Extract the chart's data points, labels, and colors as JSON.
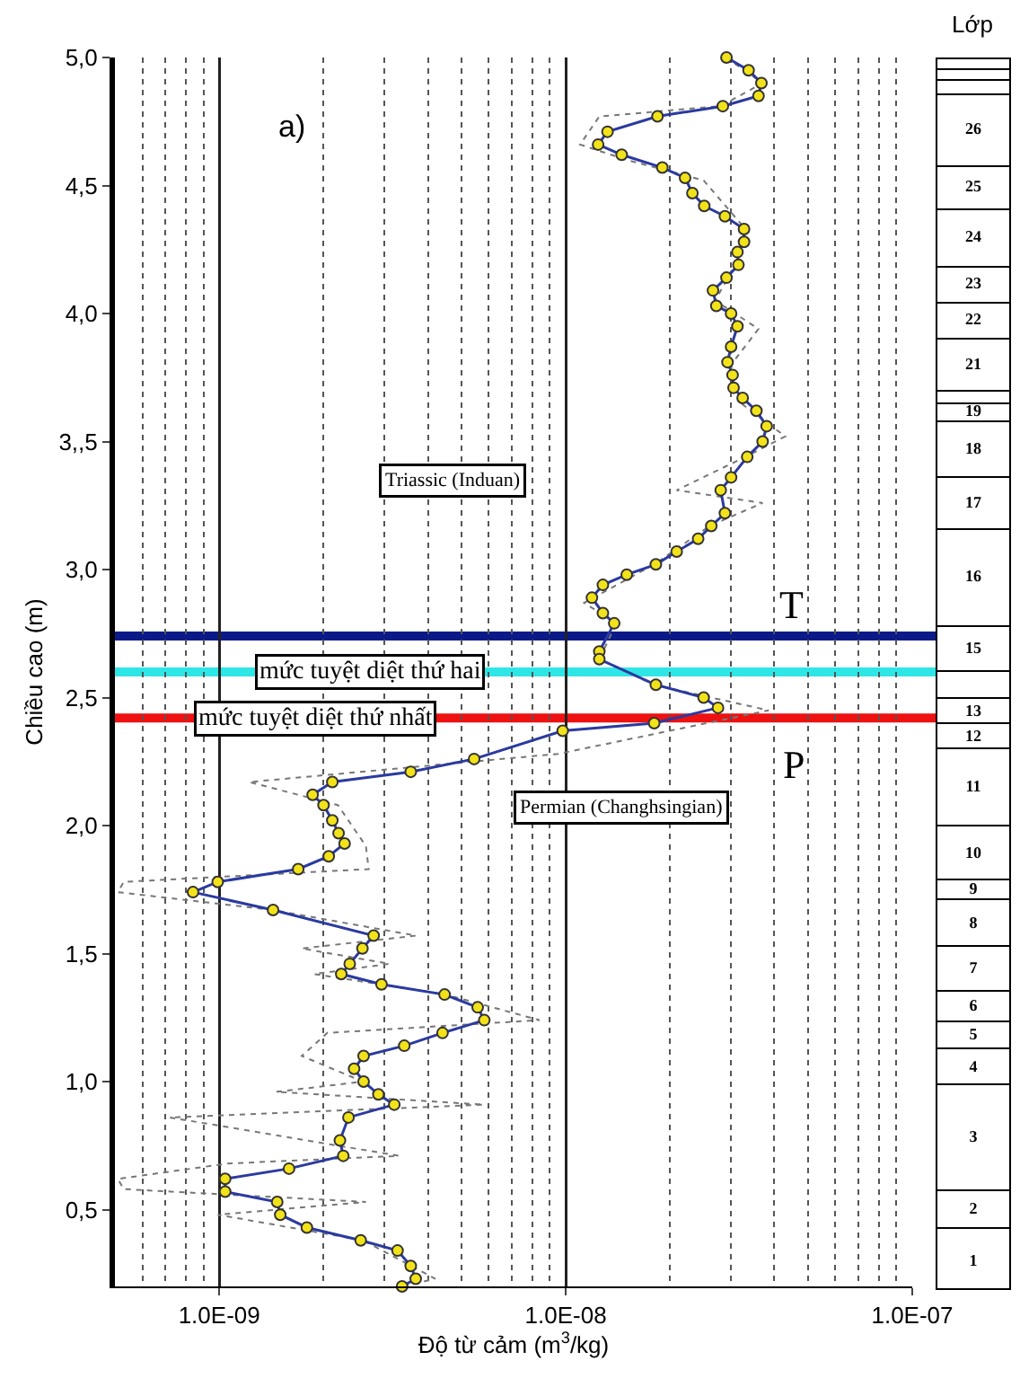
{
  "chart_data": [
    {
      "type": "line",
      "xlabel": "Độ từ cảm (m$^{3}$/kg)",
      "ylabel": "Chiều cao (m)",
      "log": "x",
      "grid": "x",
      "xlim": [
        5e-10,
        1e-07
      ],
      "xticks": [
        {
          "value": 1e-09,
          "label": "1.0E-09"
        },
        {
          "value": 1e-08,
          "label": "1.0E-08"
        },
        {
          "value": 1e-07,
          "label": "1.0E-07"
        }
      ],
      "ylim": [
        0.2,
        5.0
      ],
      "yticks": [
        {
          "value": 0.5,
          "label": "0,5"
        },
        {
          "value": 1.0,
          "label": "1,0"
        },
        {
          "value": 1.5,
          "label": "1,5"
        },
        {
          "value": 2.0,
          "label": "2,0"
        },
        {
          "value": 2.5,
          "label": "2,5"
        },
        {
          "value": 3.0,
          "label": "3,0"
        },
        {
          "value": 3.5,
          "label": "3,,5"
        },
        {
          "value": 4.0,
          "label": "4,0"
        },
        {
          "value": 4.5,
          "label": "4,5"
        },
        {
          "value": 5.0,
          "label": "5,0"
        }
      ],
      "series": [
        {
          "color": "#777777",
          "line_style": "dotted",
          "marker": "none",
          "x": [
            2.9e-08,
            3.7e-08,
            2.8e-08,
            1.25e-08,
            1.1e-08,
            1.5e-08,
            2.5e-08,
            3.3e-08,
            3.1e-08,
            2.7e-08,
            3.6e-08,
            3e-08,
            3.2e-08,
            4.3e-08,
            3.3e-08,
            2.09e-08,
            3.7e-08,
            2.6e-08,
            1.8e-08,
            1.13e-08,
            1.4e-08,
            1.25e-08,
            1.8e-08,
            3.85e-08,
            9.5e-09,
            5.4e-09,
            1.22e-09,
            2.2e-09,
            2.65e-09,
            2.7e-09,
            5.3e-10,
            5.1e-10,
            1.43e-09,
            3.7e-09,
            1.73e-09,
            3.1e-09,
            1.88e-09,
            4.5e-09,
            8.4e-09,
            2.05e-09,
            1.73e-09,
            2.6e-09,
            1.46e-09,
            5.8e-09,
            7.2e-10,
            3.3e-09,
            1.06e-09,
            5.1e-10,
            5.3e-10,
            2.65e-09,
            9.9e-10,
            2.6e-09,
            4.2e-09,
            3.4e-09
          ],
          "values": [
            5.0,
            4.9,
            4.81,
            4.77,
            4.66,
            4.6,
            4.52,
            4.33,
            4.2,
            4.05,
            3.94,
            3.8,
            3.65,
            3.52,
            3.44,
            3.31,
            3.26,
            3.17,
            3.02,
            2.87,
            2.79,
            2.65,
            2.55,
            2.45,
            2.28,
            2.25,
            2.17,
            2.08,
            1.92,
            1.83,
            1.78,
            1.74,
            1.67,
            1.57,
            1.52,
            1.46,
            1.42,
            1.34,
            1.24,
            1.19,
            1.1,
            1.0,
            0.96,
            0.91,
            0.86,
            0.71,
            0.68,
            0.62,
            0.58,
            0.53,
            0.48,
            0.38,
            0.23,
            0.2
          ]
        },
        {
          "color": "#2a3aa0",
          "marker": "circle",
          "x": [
            2.91e-08,
            3.37e-08,
            3.67e-08,
            3.6e-08,
            2.84e-08,
            1.84e-08,
            1.32e-08,
            1.24e-08,
            1.45e-08,
            1.9e-08,
            2.21e-08,
            2.32e-08,
            2.51e-08,
            2.88e-08,
            3.27e-08,
            3.27e-08,
            3.13e-08,
            3.15e-08,
            2.91e-08,
            2.66e-08,
            2.72e-08,
            3e-08,
            3.13e-08,
            3e-08,
            2.93e-08,
            3.03e-08,
            3.05e-08,
            3.24e-08,
            3.55e-08,
            3.8e-08,
            3.7e-08,
            3.34e-08,
            3e-08,
            2.8e-08,
            2.88e-08,
            2.63e-08,
            2.41e-08,
            2.09e-08,
            1.82e-08,
            1.5e-08,
            1.28e-08,
            1.19e-08,
            1.28e-08,
            1.38e-08,
            1.25e-08,
            1.25e-08,
            1.82e-08,
            2.5e-08,
            2.75e-08,
            1.8e-08,
            9.8e-09,
            5.44e-09,
            3.57e-09,
            2.12e-09,
            1.86e-09,
            2e-09,
            2.12e-09,
            2.21e-09,
            2.3e-09,
            2.07e-09,
            1.69e-09,
            9.9e-10,
            8.4e-10,
            1.43e-09,
            2.79e-09,
            2.59e-09,
            2.38e-09,
            2.25e-09,
            2.94e-09,
            4.47e-09,
            5.57e-09,
            5.82e-09,
            4.41e-09,
            3.42e-09,
            2.61e-09,
            2.45e-09,
            2.61e-09,
            2.88e-09,
            3.2e-09,
            2.36e-09,
            2.23e-09,
            2.28e-09,
            1.59e-09,
            1.04e-09,
            1.04e-09,
            1.47e-09,
            1.5e-09,
            1.79e-09,
            2.56e-09,
            3.27e-09,
            3.57e-09,
            3.69e-09,
            3.37e-09
          ],
          "values": [
            5.0,
            4.95,
            4.9,
            4.85,
            4.81,
            4.77,
            4.71,
            4.66,
            4.62,
            4.57,
            4.53,
            4.47,
            4.42,
            4.38,
            4.33,
            4.28,
            4.24,
            4.19,
            4.14,
            4.09,
            4.03,
            4.0,
            3.95,
            3.87,
            3.81,
            3.76,
            3.71,
            3.67,
            3.62,
            3.56,
            3.5,
            3.44,
            3.36,
            3.31,
            3.22,
            3.17,
            3.12,
            3.07,
            3.02,
            2.98,
            2.94,
            2.89,
            2.83,
            2.79,
            2.68,
            2.65,
            2.55,
            2.5,
            2.46,
            2.4,
            2.37,
            2.26,
            2.21,
            2.17,
            2.12,
            2.08,
            2.02,
            1.97,
            1.93,
            1.88,
            1.83,
            1.78,
            1.74,
            1.67,
            1.57,
            1.52,
            1.46,
            1.42,
            1.38,
            1.34,
            1.29,
            1.24,
            1.19,
            1.14,
            1.1,
            1.05,
            1.0,
            0.95,
            0.91,
            0.86,
            0.77,
            0.71,
            0.66,
            0.62,
            0.57,
            0.53,
            0.48,
            0.43,
            0.38,
            0.34,
            0.28,
            0.23,
            0.2
          ]
        }
      ],
      "ref_lines": [
        {
          "axis": "y",
          "value": 2.74,
          "color": "#0b1a88"
        },
        {
          "axis": "y",
          "value": 2.6,
          "color": "#2ee6e6",
          "label": "mức tuyệt diệt thứ hai"
        },
        {
          "axis": "y",
          "value": 2.42,
          "color": "#ee1111",
          "label": "mức tuyệt diệt thứ nhất"
        }
      ],
      "annotations": [
        "a)",
        "Triassic (Induan)",
        "Permian (Changhsingian)",
        "T",
        "P"
      ]
    },
    {
      "type": "other",
      "title": "Lớp",
      "annotations": [
        "26",
        "25",
        "24",
        "23",
        "22",
        "21",
        "19",
        "18",
        "17",
        "16",
        "15",
        "13",
        "12",
        "11",
        "10",
        "9",
        "8",
        "7",
        "6",
        "5",
        "4",
        "3",
        "2",
        "1"
      ]
    }
  ]
}
